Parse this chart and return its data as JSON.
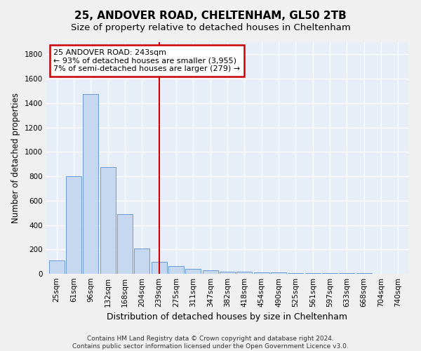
{
  "title": "25, ANDOVER ROAD, CHELTENHAM, GL50 2TB",
  "subtitle": "Size of property relative to detached houses in Cheltenham",
  "xlabel": "Distribution of detached houses by size in Cheltenham",
  "ylabel": "Number of detached properties",
  "categories": [
    "25sqm",
    "61sqm",
    "96sqm",
    "132sqm",
    "168sqm",
    "204sqm",
    "239sqm",
    "275sqm",
    "311sqm",
    "347sqm",
    "382sqm",
    "418sqm",
    "454sqm",
    "490sqm",
    "525sqm",
    "561sqm",
    "597sqm",
    "633sqm",
    "668sqm",
    "704sqm",
    "740sqm"
  ],
  "values": [
    110,
    800,
    1475,
    875,
    490,
    205,
    100,
    65,
    40,
    28,
    20,
    15,
    12,
    10,
    8,
    6,
    5,
    4,
    3,
    2,
    2
  ],
  "bar_color": "#c5d8f0",
  "bar_edge_color": "#5b8fd4",
  "marker_index": 6,
  "marker_color": "#cc0000",
  "annotation_line1": "25 ANDOVER ROAD: 243sqm",
  "annotation_line2": "← 93% of detached houses are smaller (3,955)",
  "annotation_line3": "7% of semi-detached houses are larger (279) →",
  "annotation_box_color": "#cc0000",
  "ylim": [
    0,
    1900
  ],
  "yticks": [
    0,
    200,
    400,
    600,
    800,
    1000,
    1200,
    1400,
    1600,
    1800
  ],
  "footnote": "Contains HM Land Registry data © Crown copyright and database right 2024.\nContains public sector information licensed under the Open Government Licence v3.0.",
  "background_color": "#e8eef7",
  "fig_background_color": "#f0f0f0",
  "grid_color": "#ffffff",
  "title_fontsize": 11,
  "subtitle_fontsize": 9.5,
  "tick_fontsize": 7.5,
  "ylabel_fontsize": 8.5,
  "xlabel_fontsize": 9,
  "footnote_fontsize": 6.5
}
